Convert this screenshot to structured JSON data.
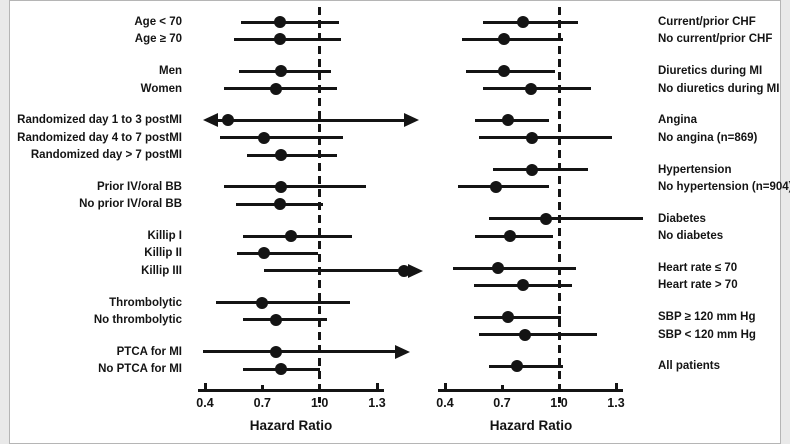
{
  "figure": {
    "background": "#ffffff",
    "ink_color": "#141414",
    "border_color": "#b5b5b5"
  },
  "chart_data": [
    {
      "type": "forest",
      "panel": "left",
      "label_side": "left",
      "xlabel": "Hazard Ratio",
      "axis": {
        "min": 0.4,
        "max": 1.3,
        "tick_values": [
          0.4,
          0.7,
          1.0,
          1.3
        ],
        "ticks": [
          "0.4",
          "0.7",
          "1.0",
          "1.3"
        ],
        "reference_line": 1.0,
        "reference_style": "dashed"
      },
      "groups": [
        [
          {
            "label": "Age < 70",
            "hr": 0.79,
            "lo": 0.59,
            "hi": 1.1
          },
          {
            "label": "Age ≥ 70",
            "hr": 0.79,
            "lo": 0.55,
            "hi": 1.11
          }
        ],
        [
          {
            "label": "Men",
            "hr": 0.8,
            "lo": 0.58,
            "hi": 1.06
          },
          {
            "label": "Women",
            "hr": 0.77,
            "lo": 0.5,
            "hi": 1.09
          }
        ],
        [
          {
            "label": "Randomized day 1 to 3 postMI",
            "hr": 0.52,
            "lo": 0.4,
            "hi": 1.51,
            "arrow_left": true,
            "arrow_right": true
          },
          {
            "label": "Randomized day 4 to 7 postMI",
            "hr": 0.71,
            "lo": 0.48,
            "hi": 1.12
          },
          {
            "label": "Randomized day > 7 postMI",
            "hr": 0.8,
            "lo": 0.62,
            "hi": 1.09
          }
        ],
        [
          {
            "label": "Prior IV/oral BB",
            "hr": 0.8,
            "lo": 0.5,
            "hi": 1.24
          },
          {
            "label": "No prior IV/oral BB",
            "hr": 0.79,
            "lo": 0.56,
            "hi": 1.02
          }
        ],
        [
          {
            "label": "Killip I",
            "hr": 0.85,
            "lo": 0.6,
            "hi": 1.17
          },
          {
            "label": "Killip II",
            "hr": 0.71,
            "lo": 0.57,
            "hi": 0.99
          },
          {
            "label": "Killip III",
            "hr": 1.44,
            "lo": 0.71,
            "hi": 1.53,
            "arrow_right": true
          }
        ],
        [
          {
            "label": "Thrombolytic",
            "hr": 0.7,
            "lo": 0.46,
            "hi": 1.16
          },
          {
            "label": "No thrombolytic",
            "hr": 0.77,
            "lo": 0.6,
            "hi": 1.04
          }
        ],
        [
          {
            "label": "PTCA for MI",
            "hr": 0.77,
            "lo": 0.39,
            "hi": 1.46,
            "arrow_right": true
          },
          {
            "label": "No PTCA for MI",
            "hr": 0.8,
            "lo": 0.6,
            "hi": 1.0
          }
        ]
      ]
    },
    {
      "type": "forest",
      "panel": "right",
      "label_side": "right",
      "xlabel": "Hazard Ratio",
      "axis": {
        "min": 0.4,
        "max": 1.3,
        "tick_values": [
          0.4,
          0.7,
          1.0,
          1.3
        ],
        "ticks": [
          "0.4",
          "0.7",
          "1.0",
          "1.3"
        ],
        "reference_line": 1.0,
        "reference_style": "dashed"
      },
      "groups": [
        [
          {
            "label": "Current/prior CHF",
            "hr": 0.81,
            "lo": 0.6,
            "hi": 1.1
          },
          {
            "label": "No current/prior CHF",
            "hr": 0.71,
            "lo": 0.49,
            "hi": 1.02
          }
        ],
        [
          {
            "label": "Diuretics during MI",
            "hr": 0.71,
            "lo": 0.51,
            "hi": 0.98
          },
          {
            "label": "No diuretics during MI",
            "hr": 0.85,
            "lo": 0.6,
            "hi": 1.17
          }
        ],
        [
          {
            "label": "Angina",
            "hr": 0.73,
            "lo": 0.56,
            "hi": 0.95
          },
          {
            "label": "No angina (n=869)",
            "hr": 0.86,
            "lo": 0.58,
            "hi": 1.28
          }
        ],
        [
          {
            "label": "Hypertension",
            "hr": 0.86,
            "lo": 0.65,
            "hi": 1.15
          },
          {
            "label": "No hypertension (n=904)",
            "hr": 0.67,
            "lo": 0.47,
            "hi": 0.95
          }
        ],
        [
          {
            "label": "Diabetes",
            "hr": 0.93,
            "lo": 0.63,
            "hi": 1.44
          },
          {
            "label": "No diabetes",
            "hr": 0.74,
            "lo": 0.56,
            "hi": 0.97
          }
        ],
        [
          {
            "label": "Heart rate ≤ 70",
            "hr": 0.68,
            "lo": 0.44,
            "hi": 1.09
          },
          {
            "label": "Heart rate > 70",
            "hr": 0.81,
            "lo": 0.55,
            "hi": 1.07
          }
        ],
        [
          {
            "label": "SBP ≥ 120 mm Hg",
            "hr": 0.73,
            "lo": 0.55,
            "hi": 1.01
          },
          {
            "label": "SBP < 120 mm Hg",
            "hr": 0.82,
            "lo": 0.58,
            "hi": 1.2
          }
        ],
        [
          {
            "label": "All patients",
            "hr": 0.78,
            "lo": 0.63,
            "hi": 1.02
          }
        ]
      ]
    }
  ]
}
